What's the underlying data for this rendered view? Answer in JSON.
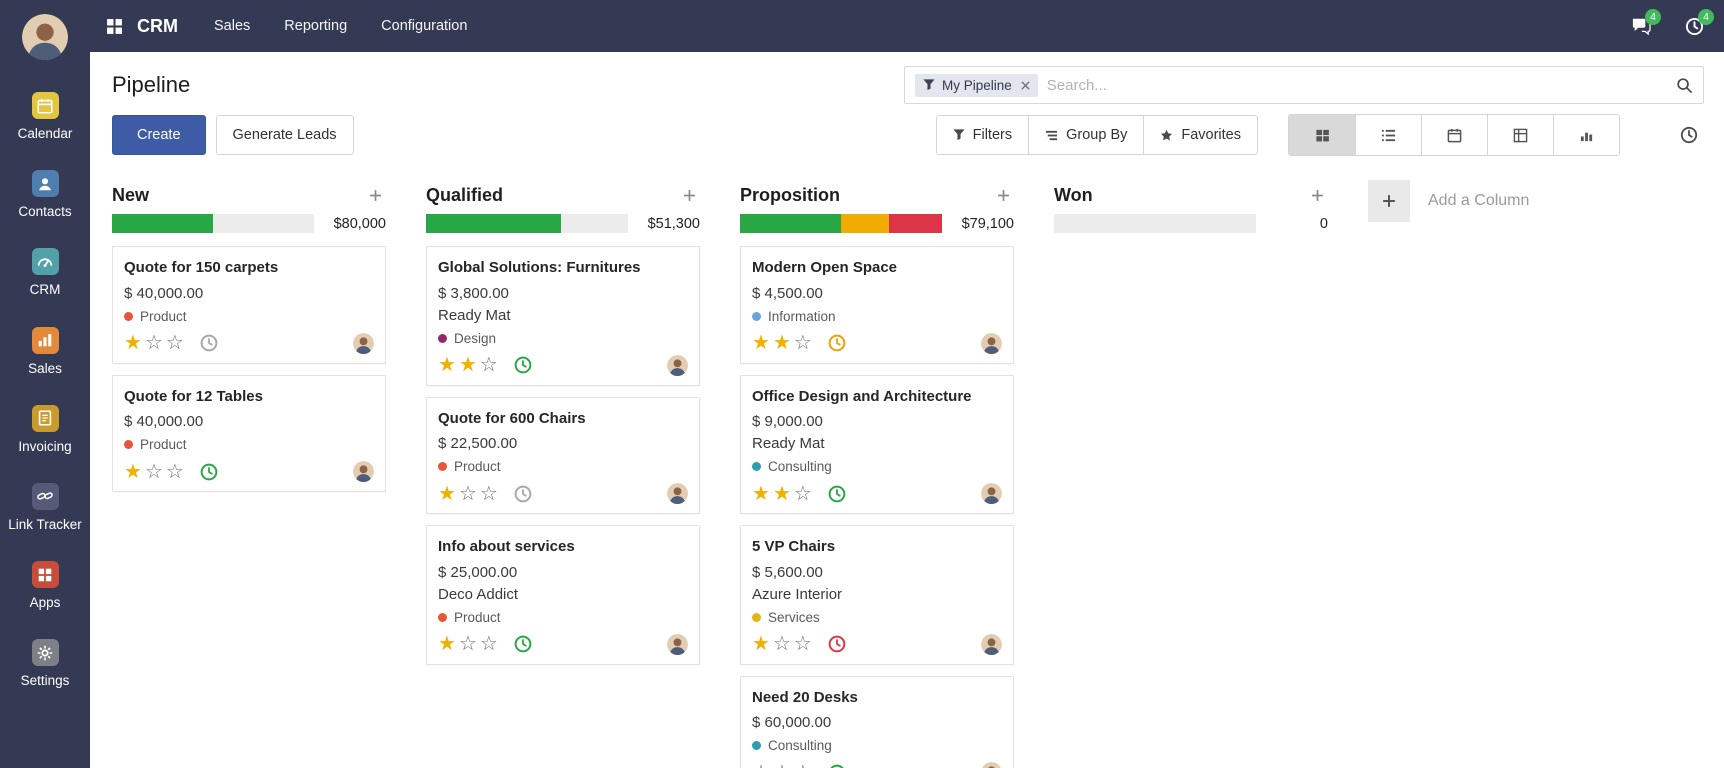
{
  "colors": {
    "navbar_bg": "#353a54",
    "primary_button": "#3e5ca5",
    "badge_green": "#44b85c",
    "progress_green": "#28a745",
    "progress_yellow": "#f0ad00",
    "progress_red": "#dc3545",
    "star_gold": "#f0b101"
  },
  "navbar": {
    "app_name": "CRM",
    "menus": [
      "Sales",
      "Reporting",
      "Configuration"
    ],
    "messages_badge": "4",
    "activities_badge": "4",
    "icons": [
      "apps-grid-icon",
      "messages-icon",
      "activities-clock-icon"
    ]
  },
  "sidebar": {
    "items": [
      {
        "label": "Calendar",
        "icon": "calendar-app-icon"
      },
      {
        "label": "Contacts",
        "icon": "contacts-app-icon"
      },
      {
        "label": "CRM",
        "icon": "crm-app-icon"
      },
      {
        "label": "Sales",
        "icon": "sales-app-icon"
      },
      {
        "label": "Invoicing",
        "icon": "invoicing-app-icon"
      },
      {
        "label": "Link Tracker",
        "icon": "link-tracker-app-icon"
      },
      {
        "label": "Apps",
        "icon": "apps-app-icon"
      },
      {
        "label": "Settings",
        "icon": "settings-app-icon"
      }
    ]
  },
  "control_panel": {
    "title": "Pipeline",
    "create_label": "Create",
    "generate_leads_label": "Generate Leads",
    "search": {
      "facet_label": "My Pipeline",
      "placeholder": "Search..."
    },
    "filter_buttons": [
      {
        "label": "Filters",
        "icon": "filter-funnel-icon"
      },
      {
        "label": "Group By",
        "icon": "group-by-icon"
      },
      {
        "label": "Favorites",
        "icon": "favorite-star-icon"
      }
    ],
    "view_switcher": [
      "kanban",
      "list",
      "calendar",
      "pivot",
      "graph",
      "activity"
    ],
    "active_view": "kanban"
  },
  "board": {
    "add_column_label": "Add a Column",
    "columns": [
      {
        "name": "New",
        "amount": "$80,000",
        "progress": [
          {
            "color": "#28a745",
            "pct": 50
          }
        ],
        "cards": [
          {
            "title": "Quote for 150 carpets",
            "amount": "$ 40,000.00",
            "partner": "",
            "tag": {
              "label": "Product",
              "color": "#e4573d"
            },
            "stars": 1,
            "activity_color": "#a8a8a8"
          },
          {
            "title": "Quote for 12 Tables",
            "amount": "$ 40,000.00",
            "partner": "",
            "tag": {
              "label": "Product",
              "color": "#e4573d"
            },
            "stars": 1,
            "activity_color": "#28a745"
          }
        ]
      },
      {
        "name": "Qualified",
        "amount": "$51,300",
        "progress": [
          {
            "color": "#28a745",
            "pct": 67
          }
        ],
        "cards": [
          {
            "title": "Global Solutions: Furnitures",
            "amount": "$ 3,800.00",
            "partner": "Ready Mat",
            "tag": {
              "label": "Design",
              "color": "#93276b"
            },
            "stars": 2,
            "activity_color": "#28a745"
          },
          {
            "title": "Quote for 600 Chairs",
            "amount": "$ 22,500.00",
            "partner": "",
            "tag": {
              "label": "Product",
              "color": "#e4573d"
            },
            "stars": 1,
            "activity_color": "#a8a8a8"
          },
          {
            "title": "Info about services",
            "amount": "$ 25,000.00",
            "partner": "Deco Addict",
            "tag": {
              "label": "Product",
              "color": "#e4573d"
            },
            "stars": 1,
            "activity_color": "#28a745"
          }
        ]
      },
      {
        "name": "Proposition",
        "amount": "$79,100",
        "progress": [
          {
            "color": "#28a745",
            "pct": 50
          },
          {
            "color": "#f0ad00",
            "pct": 24
          },
          {
            "color": "#dc3545",
            "pct": 26
          }
        ],
        "cards": [
          {
            "title": "Modern Open Space",
            "amount": "$ 4,500.00",
            "partner": "",
            "tag": {
              "label": "Information",
              "color": "#6aa3d8"
            },
            "stars": 2,
            "activity_color": "#f0a000"
          },
          {
            "title": "Office Design and Architecture",
            "amount": "$ 9,000.00",
            "partner": "Ready Mat",
            "tag": {
              "label": "Consulting",
              "color": "#2e9db0"
            },
            "stars": 2,
            "activity_color": "#28a745"
          },
          {
            "title": "5 VP Chairs",
            "amount": "$ 5,600.00",
            "partner": "Azure Interior",
            "tag": {
              "label": "Services",
              "color": "#e2b714"
            },
            "stars": 1,
            "activity_color": "#dc3545"
          },
          {
            "title": "Need 20 Desks",
            "amount": "$ 60,000.00",
            "partner": "",
            "tag": {
              "label": "Consulting",
              "color": "#2e9db0"
            },
            "stars": 0,
            "activity_color": "#28a745"
          }
        ]
      },
      {
        "name": "Won",
        "amount": "0",
        "progress": [],
        "cards": []
      }
    ]
  }
}
